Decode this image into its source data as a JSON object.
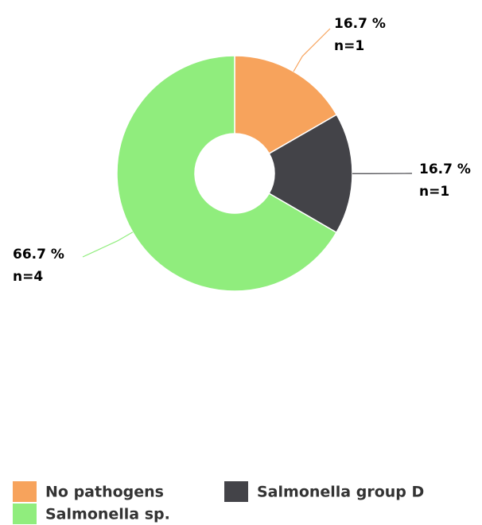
{
  "chart_data": {
    "type": "pie",
    "donut": true,
    "categories": [
      "No pathogens",
      "Salmonella group D",
      "Salmonella sp."
    ],
    "values": [
      16.7,
      16.7,
      66.7
    ],
    "value_labels": [
      "16.7 %",
      "16.7 %",
      "66.7 %"
    ],
    "counts": [
      1,
      1,
      4
    ],
    "count_labels": [
      "n=1",
      "n=1",
      "n=4"
    ],
    "colors": [
      "#f7a35c",
      "#434348",
      "#90ed7d"
    ]
  }
}
